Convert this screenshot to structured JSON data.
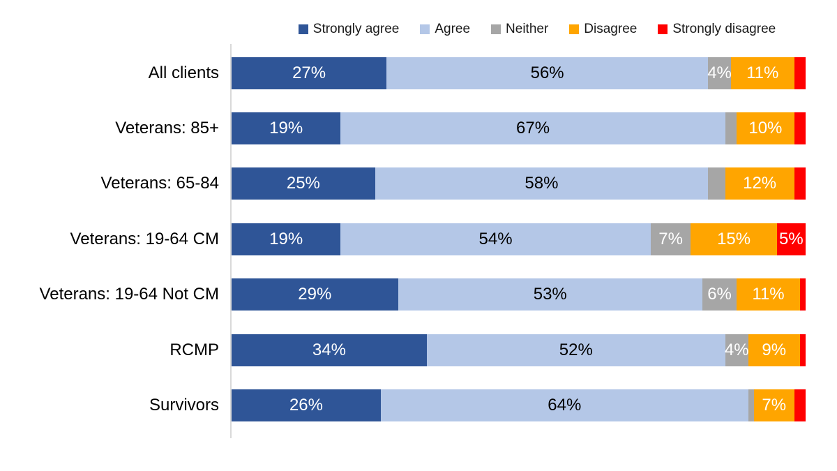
{
  "chart_data": {
    "type": "bar",
    "subtype": "horizontal-stacked",
    "stacked": true,
    "title": "",
    "xlabel": "",
    "ylabel": "",
    "xlim": [
      0,
      100
    ],
    "grid": false,
    "legend_position": "top",
    "axis_line_color": "#d9d9d9",
    "categories": [
      "All clients",
      "Veterans: 85+",
      "Veterans: 65-84",
      "Veterans: 19-64 CM",
      "Veterans: 19-64 Not CM",
      "RCMP",
      "Survivors"
    ],
    "series": [
      {
        "name": "Strongly agree",
        "color": "#2F5597",
        "label_color": "#ffffff",
        "values": [
          27,
          19,
          25,
          19,
          29,
          34,
          26
        ]
      },
      {
        "name": "Agree",
        "color": "#B4C7E7",
        "label_color": "#000000",
        "values": [
          56,
          67,
          58,
          54,
          53,
          52,
          64
        ]
      },
      {
        "name": "Neither",
        "color": "#A6A6A6",
        "label_color": "#ffffff",
        "values": [
          4,
          2,
          3,
          7,
          6,
          4,
          1
        ]
      },
      {
        "name": "Disagree",
        "color": "#FFA500",
        "label_color": "#ffffff",
        "values": [
          11,
          10,
          12,
          15,
          11,
          9,
          7
        ]
      },
      {
        "name": "Strongly disagree",
        "color": "#FF0000",
        "label_color": "#ffffff",
        "values": [
          2,
          2,
          2,
          5,
          1,
          1,
          2
        ]
      }
    ],
    "data_labels": [
      [
        "27%",
        "56%",
        "4%",
        "11%",
        ""
      ],
      [
        "19%",
        "67%",
        "",
        "10%",
        ""
      ],
      [
        "25%",
        "58%",
        "",
        "12%",
        ""
      ],
      [
        "19%",
        "54%",
        "7%",
        "15%",
        "5%"
      ],
      [
        "29%",
        "53%",
        "6%",
        "11%",
        ""
      ],
      [
        "34%",
        "52%",
        "4%",
        "9%",
        ""
      ],
      [
        "26%",
        "64%",
        "",
        "7%",
        ""
      ]
    ]
  }
}
